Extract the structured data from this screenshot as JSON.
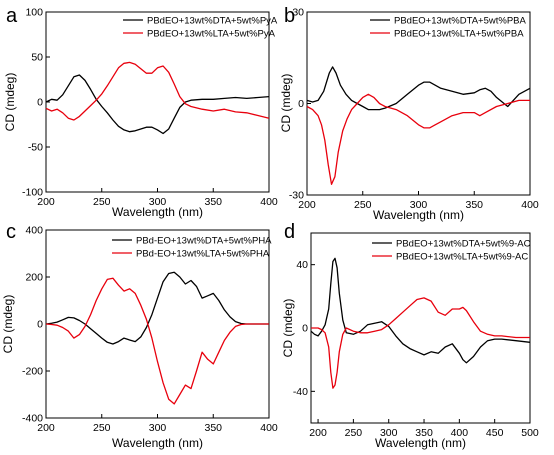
{
  "chart_data": [
    {
      "type": "line",
      "panel_label": "a",
      "xlabel": "Wavelength (nm)",
      "ylabel": "CD (mdeg)",
      "xlim": [
        200,
        400
      ],
      "ylim": [
        -100,
        100
      ],
      "xticks": [
        200,
        250,
        300,
        350,
        400
      ],
      "yticks": [
        -100,
        -50,
        0,
        50,
        100
      ],
      "legend_position": "top-right",
      "series": [
        {
          "name": "PBdEO+13wt%DTA+5wt%PyA",
          "color": "#000000",
          "x": [
            200,
            205,
            210,
            215,
            220,
            225,
            230,
            235,
            240,
            245,
            250,
            255,
            260,
            265,
            270,
            275,
            280,
            285,
            290,
            295,
            300,
            305,
            310,
            315,
            320,
            325,
            330,
            340,
            350,
            360,
            370,
            380,
            390,
            400
          ],
          "y": [
            0,
            3,
            2,
            8,
            18,
            28,
            30,
            24,
            14,
            3,
            -5,
            -12,
            -20,
            -27,
            -31,
            -33,
            -32,
            -30,
            -28,
            -28,
            -31,
            -35,
            -30,
            -18,
            -6,
            0,
            2,
            3,
            3,
            4,
            5,
            4,
            5,
            6
          ]
        },
        {
          "name": "PBdEO+13wt%LTA+5wt%PyA",
          "color": "#e8000d",
          "x": [
            200,
            205,
            210,
            215,
            220,
            225,
            230,
            235,
            240,
            245,
            250,
            255,
            260,
            265,
            270,
            275,
            280,
            285,
            290,
            295,
            300,
            305,
            310,
            315,
            320,
            325,
            330,
            340,
            350,
            360,
            370,
            380,
            390,
            400
          ],
          "y": [
            -7,
            -10,
            -8,
            -12,
            -18,
            -20,
            -16,
            -10,
            -4,
            2,
            9,
            18,
            28,
            38,
            43,
            44,
            42,
            37,
            32,
            32,
            38,
            40,
            33,
            20,
            6,
            -2,
            -5,
            -8,
            -10,
            -8,
            -11,
            -12,
            -15,
            -18
          ]
        }
      ]
    },
    {
      "type": "line",
      "panel_label": "b",
      "xlabel": "Wavelength (nm)",
      "ylabel": "CD (mdeg)",
      "xlim": [
        200,
        400
      ],
      "ylim": [
        -30,
        30
      ],
      "xticks": [
        200,
        250,
        300,
        350,
        400
      ],
      "yticks": [
        -30,
        0,
        30
      ],
      "legend_position": "top-right",
      "series": [
        {
          "name": "PBdEO+13wt%DTA+5wt%PBA",
          "color": "#000000",
          "x": [
            200,
            205,
            210,
            215,
            220,
            223,
            226,
            230,
            235,
            240,
            245,
            250,
            255,
            260,
            265,
            270,
            280,
            290,
            300,
            305,
            310,
            320,
            330,
            340,
            350,
            355,
            360,
            365,
            370,
            380,
            390,
            400
          ],
          "y": [
            1,
            0.5,
            1,
            4,
            10,
            12,
            10,
            6,
            3,
            1,
            0,
            -1,
            -2,
            -2,
            -2,
            -1.5,
            0,
            3,
            6,
            7,
            7,
            5,
            4,
            3,
            3.5,
            4.5,
            5,
            4,
            2,
            -1,
            3,
            5
          ]
        },
        {
          "name": "PBdEO+13wt%LTA+5wt%PBA",
          "color": "#e8000d",
          "x": [
            200,
            205,
            210,
            213,
            216,
            219,
            222,
            225,
            228,
            232,
            236,
            240,
            245,
            250,
            255,
            260,
            265,
            270,
            280,
            290,
            300,
            305,
            310,
            315,
            320,
            330,
            340,
            350,
            355,
            360,
            370,
            380,
            390,
            400
          ],
          "y": [
            -1,
            -2,
            -4,
            -7,
            -12,
            -20,
            -26.5,
            -24,
            -16,
            -9,
            -5,
            -2,
            0,
            2,
            3,
            2,
            0,
            -1,
            -2,
            -4,
            -7,
            -8,
            -8,
            -7,
            -6,
            -4,
            -3,
            -3,
            -4,
            -3,
            -1,
            0,
            1,
            1
          ]
        }
      ]
    },
    {
      "type": "line",
      "panel_label": "c",
      "xlabel": "Wavelength (nm)",
      "ylabel": "CD (mdeg)",
      "xlim": [
        200,
        400
      ],
      "ylim": [
        -400,
        400
      ],
      "xticks": [
        200,
        250,
        300,
        350,
        400
      ],
      "yticks": [
        -400,
        -200,
        0,
        200,
        400
      ],
      "legend_position": "top-right",
      "series": [
        {
          "name": "PBd-EO+13wt%DTA+5wt%PHA",
          "color": "#000000",
          "x": [
            200,
            205,
            210,
            215,
            220,
            225,
            230,
            235,
            240,
            245,
            250,
            255,
            260,
            265,
            270,
            275,
            280,
            285,
            290,
            295,
            300,
            305,
            310,
            315,
            320,
            325,
            330,
            335,
            340,
            345,
            350,
            355,
            360,
            365,
            370,
            375,
            380,
            390,
            400
          ],
          "y": [
            0,
            3,
            8,
            18,
            28,
            26,
            15,
            0,
            -20,
            -40,
            -60,
            -78,
            -85,
            -75,
            -60,
            -68,
            -75,
            -55,
            -15,
            40,
            110,
            180,
            215,
            220,
            200,
            170,
            185,
            160,
            110,
            120,
            130,
            100,
            60,
            30,
            10,
            2,
            0,
            0,
            0
          ]
        },
        {
          "name": "PBd-EO+13wt%LTA+5wt%PHA",
          "color": "#e8000d",
          "x": [
            200,
            205,
            210,
            215,
            220,
            225,
            230,
            235,
            240,
            245,
            250,
            255,
            260,
            265,
            270,
            275,
            280,
            285,
            290,
            295,
            300,
            305,
            310,
            315,
            320,
            325,
            330,
            335,
            340,
            345,
            350,
            355,
            360,
            365,
            370,
            375,
            380,
            390,
            400
          ],
          "y": [
            0,
            -2,
            -5,
            -15,
            -30,
            -60,
            -45,
            -10,
            40,
            100,
            150,
            190,
            195,
            165,
            140,
            150,
            130,
            80,
            20,
            -60,
            -160,
            -250,
            -320,
            -340,
            -300,
            -260,
            -275,
            -200,
            -120,
            -150,
            -170,
            -120,
            -70,
            -35,
            -10,
            -2,
            0,
            0,
            0
          ]
        }
      ]
    },
    {
      "type": "line",
      "panel_label": "d",
      "xlabel": "Wavelength (nm)",
      "ylabel": "CD (mdeg)",
      "xlim": [
        190,
        500
      ],
      "ylim": [
        -60,
        60
      ],
      "xticks": [
        200,
        250,
        300,
        350,
        400,
        450,
        500
      ],
      "yticks": [
        -40,
        0,
        40
      ],
      "legend_position": "top-right",
      "series": [
        {
          "name": "PBdEO+13wt%DTA+5wt%9-AC",
          "color": "#000000",
          "x": [
            190,
            195,
            200,
            205,
            210,
            215,
            218,
            221,
            224,
            227,
            230,
            235,
            240,
            250,
            260,
            270,
            280,
            290,
            300,
            310,
            320,
            330,
            340,
            350,
            360,
            370,
            380,
            390,
            400,
            405,
            410,
            420,
            430,
            440,
            450,
            460,
            480,
            500
          ],
          "y": [
            -2,
            -4,
            -5,
            -2,
            2,
            12,
            28,
            42,
            44,
            38,
            22,
            5,
            -3,
            -4,
            -2,
            2,
            3,
            4,
            1,
            -5,
            -10,
            -13,
            -15,
            -17,
            -15,
            -16,
            -12,
            -10,
            -16,
            -20,
            -22,
            -18,
            -12,
            -8,
            -7,
            -7,
            -8,
            -9
          ]
        },
        {
          "name": "PBdEO+13wt%LTA+5wt%9-AC",
          "color": "#e8000d",
          "x": [
            190,
            195,
            200,
            205,
            210,
            215,
            218,
            221,
            224,
            227,
            230,
            235,
            240,
            250,
            260,
            270,
            280,
            290,
            300,
            310,
            320,
            330,
            340,
            350,
            360,
            370,
            380,
            390,
            400,
            405,
            410,
            420,
            430,
            440,
            450,
            460,
            480,
            500
          ],
          "y": [
            0,
            0,
            0,
            -1,
            -3,
            -12,
            -28,
            -38,
            -36,
            -28,
            -15,
            -4,
            0,
            -2,
            -3,
            -3,
            -2,
            -1,
            2,
            6,
            10,
            14,
            18,
            19,
            17,
            10,
            8,
            12,
            12,
            13,
            11,
            4,
            -2,
            -4,
            -5,
            -5,
            -6,
            -6
          ]
        }
      ]
    }
  ]
}
